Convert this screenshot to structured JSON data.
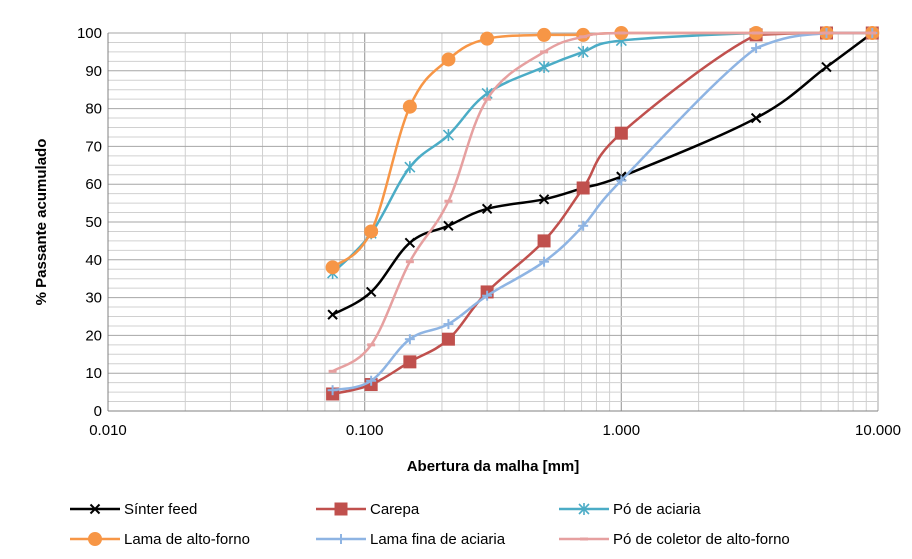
{
  "chart_data": {
    "type": "line",
    "xlabel": "Abertura da malha [mm]",
    "ylabel": "% Passante acumulado",
    "xscale": "log",
    "xlim": [
      0.01,
      10
    ],
    "ylim": [
      0,
      100
    ],
    "xticks": [
      {
        "value": 0.01,
        "label": "0.010"
      },
      {
        "value": 0.1,
        "label": "0.100"
      },
      {
        "value": 1,
        "label": "1.000"
      },
      {
        "value": 10,
        "label": "10.000"
      }
    ],
    "yticks": [
      0,
      10,
      20,
      30,
      40,
      50,
      60,
      70,
      80,
      90,
      100
    ],
    "grid": true,
    "legend_position": "bottom",
    "series": [
      {
        "name": "Sínter feed",
        "color": "#000000",
        "marker": "x",
        "x": [
          0.075,
          0.106,
          0.15,
          0.212,
          0.3,
          0.5,
          0.71,
          1.0,
          3.35,
          6.3,
          9.5
        ],
        "y": [
          25.5,
          31.5,
          44.5,
          49,
          53.5,
          56,
          59,
          62,
          77.5,
          91,
          100
        ]
      },
      {
        "name": "Carepa",
        "color": "#c0504d",
        "marker": "square",
        "x": [
          0.075,
          0.106,
          0.15,
          0.212,
          0.3,
          0.5,
          0.71,
          1.0,
          3.35,
          6.3,
          9.5
        ],
        "y": [
          4.5,
          7,
          13,
          19,
          31.5,
          45,
          59,
          73.5,
          99.5,
          100,
          100
        ]
      },
      {
        "name": "Pó de aciaria",
        "color": "#4bacc6",
        "marker": "asterisk",
        "x": [
          0.075,
          0.106,
          0.15,
          0.212,
          0.3,
          0.5,
          0.71,
          1.0,
          3.35,
          6.3,
          9.5
        ],
        "y": [
          36.5,
          47,
          64.5,
          73,
          84,
          91,
          95,
          98,
          100,
          100,
          100
        ]
      },
      {
        "name": "Lama de alto-forno",
        "color": "#f79646",
        "marker": "circle",
        "x": [
          0.075,
          0.106,
          0.15,
          0.212,
          0.3,
          0.5,
          0.71,
          1.0,
          3.35,
          6.3,
          9.5
        ],
        "y": [
          38,
          47.5,
          80.5,
          93,
          98.5,
          99.5,
          99.5,
          100,
          100,
          100,
          100
        ]
      },
      {
        "name": "Lama fina de aciaria",
        "color": "#8eb4e3",
        "marker": "plus",
        "x": [
          0.075,
          0.106,
          0.15,
          0.212,
          0.3,
          0.5,
          0.71,
          1.0,
          3.35,
          6.3,
          9.5
        ],
        "y": [
          5.5,
          8,
          19,
          23,
          30.5,
          39.5,
          49,
          61,
          96,
          100,
          100
        ]
      },
      {
        "name": "Pó de coletor de alto-forno",
        "color": "#e6a0a0",
        "marker": "dash",
        "x": [
          0.075,
          0.106,
          0.15,
          0.212,
          0.3,
          0.5,
          0.71,
          1.0,
          3.35,
          6.3,
          9.5
        ],
        "y": [
          10.5,
          17.5,
          39.5,
          55.5,
          82.5,
          95,
          99,
          100,
          100,
          100,
          100
        ]
      }
    ]
  }
}
